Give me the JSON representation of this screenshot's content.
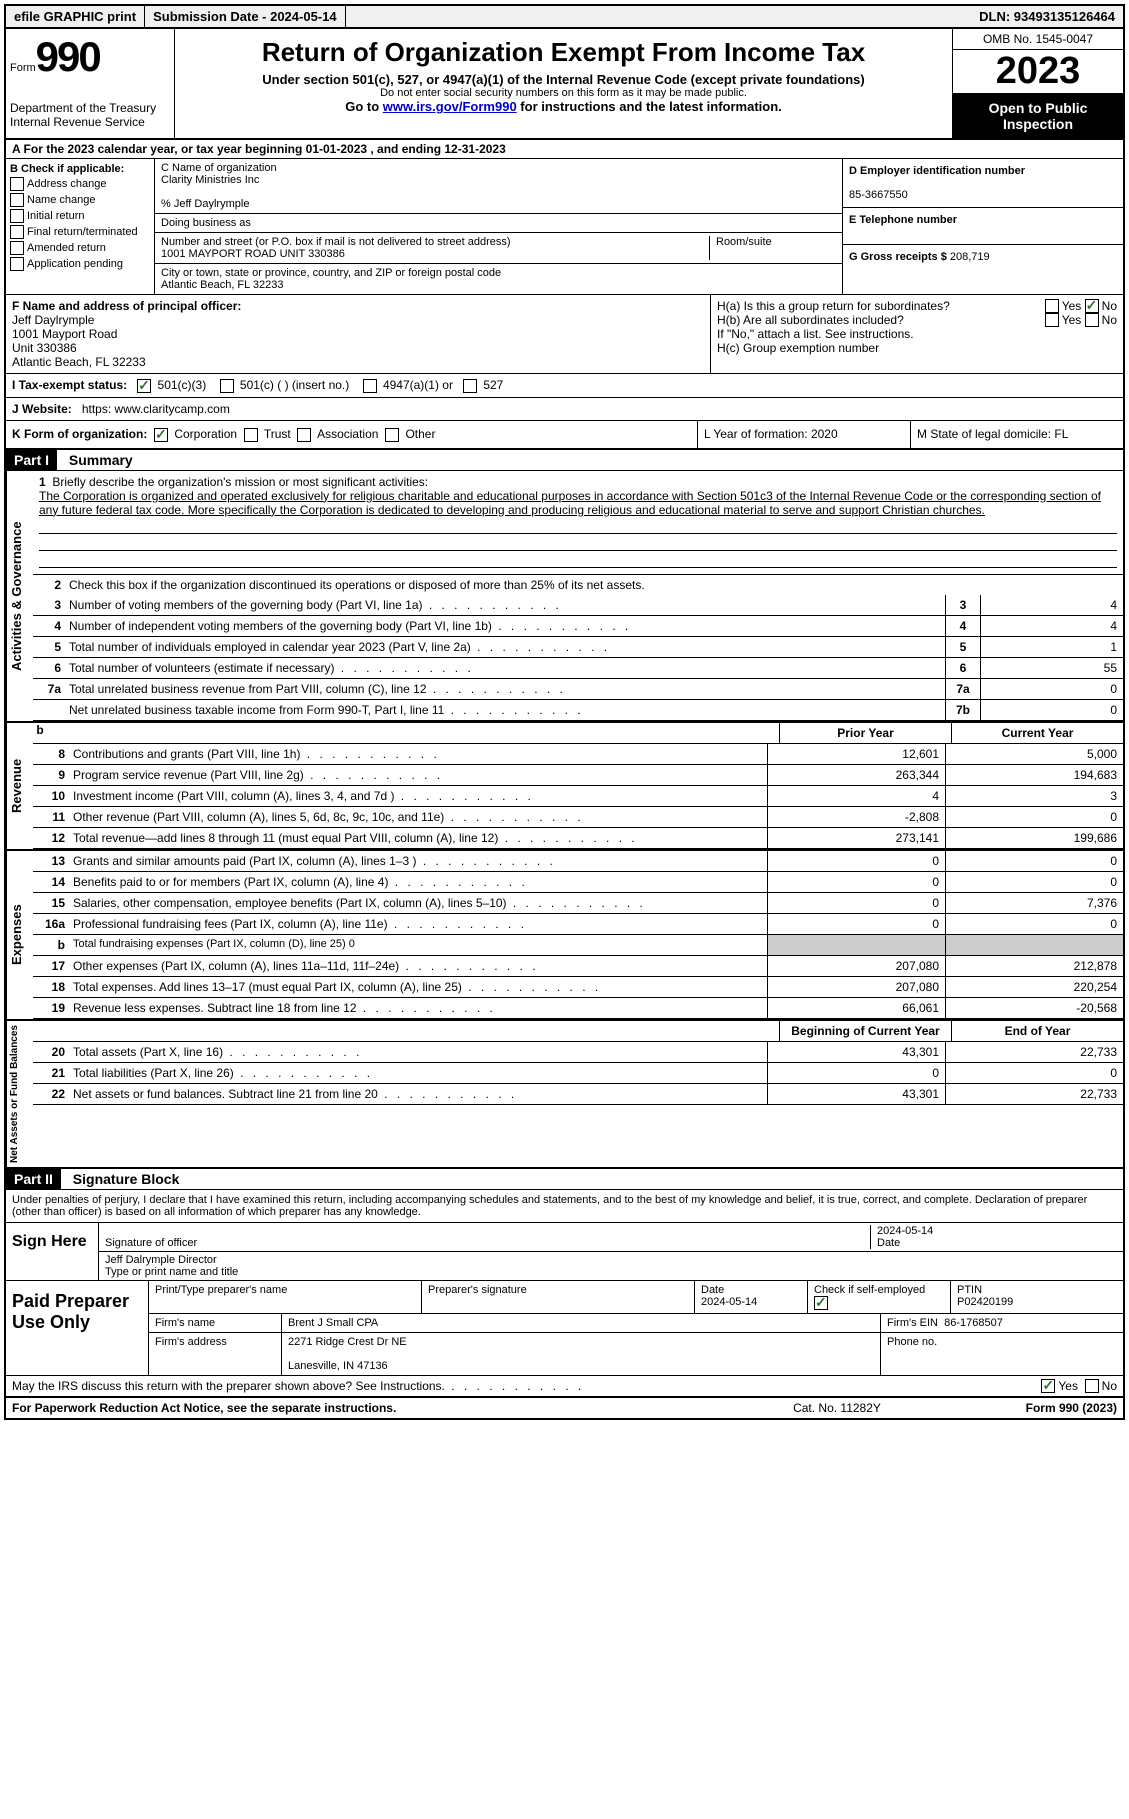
{
  "topbar": {
    "efile": "efile GRAPHIC print",
    "submission": "Submission Date - 2024-05-14",
    "dln": "DLN: 93493135126464"
  },
  "header": {
    "form_label": "Form",
    "form_number": "990",
    "dept": "Department of the Treasury Internal Revenue Service",
    "title": "Return of Organization Exempt From Income Tax",
    "subtitle": "Under section 501(c), 527, or 4947(a)(1) of the Internal Revenue Code (except private foundations)",
    "warn": "Do not enter social security numbers on this form as it may be made public.",
    "goto_pre": "Go to ",
    "goto_link": "www.irs.gov/Form990",
    "goto_post": " for instructions and the latest information.",
    "omb": "OMB No. 1545-0047",
    "year": "2023",
    "inspection": "Open to Public Inspection"
  },
  "line_a": "A For the 2023 calendar year, or tax year beginning 01-01-2023   , and ending 12-31-2023",
  "section_b": {
    "label": "B Check if applicable:",
    "items": [
      "Address change",
      "Name change",
      "Initial return",
      "Final return/terminated",
      "Amended return",
      "Application pending"
    ]
  },
  "section_c": {
    "name_label": "C Name of organization",
    "name": "Clarity Ministries Inc",
    "care_of": "% Jeff Daylrymple",
    "dba_label": "Doing business as",
    "street_label": "Number and street (or P.O. box if mail is not delivered to street address)",
    "street": "1001 MAYPORT ROAD UNIT 330386",
    "room_label": "Room/suite",
    "city_label": "City or town, state or province, country, and ZIP or foreign postal code",
    "city": "Atlantic Beach, FL  32233"
  },
  "section_d": {
    "label": "D Employer identification number",
    "ein": "85-3667550"
  },
  "section_e": {
    "label": "E Telephone number"
  },
  "section_g": {
    "label": "G Gross receipts $",
    "value": "208,719"
  },
  "officer": {
    "label": "F Name and address of principal officer:",
    "lines": [
      "Jeff Daylrymple",
      "1001 Mayport Road",
      "Unit 330386",
      "Atlantic Beach, FL  32233"
    ]
  },
  "section_h": {
    "ha": "H(a)  Is this a group return for subordinates?",
    "hb": "H(b)  Are all subordinates included?",
    "hnote": "If \"No,\" attach a list. See instructions.",
    "hc": "H(c)  Group exemption number",
    "yes": "Yes",
    "no": "No"
  },
  "tax_exempt": {
    "label": "I  Tax-exempt status:",
    "opts": [
      "501(c)(3)",
      "501(c) (  ) (insert no.)",
      "4947(a)(1) or",
      "527"
    ]
  },
  "website": {
    "label": "J  Website:",
    "url": "https: www.claritycamp.com"
  },
  "form_org": {
    "k": "K Form of organization:",
    "opts": [
      "Corporation",
      "Trust",
      "Association",
      "Other"
    ],
    "l": "L Year of formation: 2020",
    "m": "M State of legal domicile: FL"
  },
  "part1": {
    "header": "Part I",
    "title": "Summary",
    "mission_label": "Briefly describe the organization's mission or most significant activities:",
    "mission": "The Corporation is organized and operated exclusively for religious charitable and educational purposes in accordance with Section 501c3 of the Internal Revenue Code or the corresponding section of any future federal tax code. More specifically the Corporation is dedicated to developing and producing religious and educational material to serve and support Christian churches.",
    "line2": "Check this box      if the organization discontinued its operations or disposed of more than 25% of its net assets.",
    "gov_rows": [
      {
        "n": "3",
        "d": "Number of voting members of the governing body (Part VI, line 1a)",
        "bn": "3",
        "v": "4"
      },
      {
        "n": "4",
        "d": "Number of independent voting members of the governing body (Part VI, line 1b)",
        "bn": "4",
        "v": "4"
      },
      {
        "n": "5",
        "d": "Total number of individuals employed in calendar year 2023 (Part V, line 2a)",
        "bn": "5",
        "v": "1"
      },
      {
        "n": "6",
        "d": "Total number of volunteers (estimate if necessary)",
        "bn": "6",
        "v": "55"
      },
      {
        "n": "7a",
        "d": "Total unrelated business revenue from Part VIII, column (C), line 12",
        "bn": "7a",
        "v": "0"
      },
      {
        "n": "",
        "d": "Net unrelated business taxable income from Form 990-T, Part I, line 11",
        "bn": "7b",
        "v": "0"
      }
    ],
    "col_prior": "Prior Year",
    "col_current": "Current Year",
    "revenue_rows": [
      {
        "n": "8",
        "d": "Contributions and grants (Part VIII, line 1h)",
        "p": "12,601",
        "c": "5,000"
      },
      {
        "n": "9",
        "d": "Program service revenue (Part VIII, line 2g)",
        "p": "263,344",
        "c": "194,683"
      },
      {
        "n": "10",
        "d": "Investment income (Part VIII, column (A), lines 3, 4, and 7d )",
        "p": "4",
        "c": "3"
      },
      {
        "n": "11",
        "d": "Other revenue (Part VIII, column (A), lines 5, 6d, 8c, 9c, 10c, and 11e)",
        "p": "-2,808",
        "c": "0"
      },
      {
        "n": "12",
        "d": "Total revenue—add lines 8 through 11 (must equal Part VIII, column (A), line 12)",
        "p": "273,141",
        "c": "199,686"
      }
    ],
    "expense_rows": [
      {
        "n": "13",
        "d": "Grants and similar amounts paid (Part IX, column (A), lines 1–3 )",
        "p": "0",
        "c": "0"
      },
      {
        "n": "14",
        "d": "Benefits paid to or for members (Part IX, column (A), line 4)",
        "p": "0",
        "c": "0"
      },
      {
        "n": "15",
        "d": "Salaries, other compensation, employee benefits (Part IX, column (A), lines 5–10)",
        "p": "0",
        "c": "7,376"
      },
      {
        "n": "16a",
        "d": "Professional fundraising fees (Part IX, column (A), line 11e)",
        "p": "0",
        "c": "0"
      },
      {
        "n": "b",
        "d": "Total fundraising expenses (Part IX, column (D), line 25) 0",
        "shaded": true
      },
      {
        "n": "17",
        "d": "Other expenses (Part IX, column (A), lines 11a–11d, 11f–24e)",
        "p": "207,080",
        "c": "212,878"
      },
      {
        "n": "18",
        "d": "Total expenses. Add lines 13–17 (must equal Part IX, column (A), line 25)",
        "p": "207,080",
        "c": "220,254"
      },
      {
        "n": "19",
        "d": "Revenue less expenses. Subtract line 18 from line 12",
        "p": "66,061",
        "c": "-20,568"
      }
    ],
    "col_begin": "Beginning of Current Year",
    "col_end": "End of Year",
    "net_rows": [
      {
        "n": "20",
        "d": "Total assets (Part X, line 16)",
        "p": "43,301",
        "c": "22,733"
      },
      {
        "n": "21",
        "d": "Total liabilities (Part X, line 26)",
        "p": "0",
        "c": "0"
      },
      {
        "n": "22",
        "d": "Net assets or fund balances. Subtract line 21 from line 20",
        "p": "43,301",
        "c": "22,733"
      }
    ],
    "vlabels": {
      "gov": "Activities & Governance",
      "rev": "Revenue",
      "exp": "Expenses",
      "net": "Net Assets or Fund Balances"
    }
  },
  "part2": {
    "header": "Part II",
    "title": "Signature Block",
    "declare": "Under penalties of perjury, I declare that I have examined this return, including accompanying schedules and statements, and to the best of my knowledge and belief, it is true, correct, and complete. Declaration of preparer (other than officer) is based on all information of which preparer has any knowledge.",
    "sign_here": "Sign Here",
    "sig_officer": "Signature of officer",
    "sig_date_val": "2024-05-14",
    "sig_date": "Date",
    "officer_name": "Jeff Dalrymple  Director",
    "type_name": "Type or print name and title",
    "paid": "Paid Preparer Use Only",
    "prep_name_label": "Print/Type preparer's name",
    "prep_sig_label": "Preparer's signature",
    "prep_date_label": "Date",
    "prep_date": "2024-05-14",
    "check_self": "Check        if self-employed",
    "ptin_label": "PTIN",
    "ptin": "P02420199",
    "firm_name_label": "Firm's name",
    "firm_name": "Brent J Small CPA",
    "firm_ein_label": "Firm's EIN",
    "firm_ein": "86-1768507",
    "firm_addr_label": "Firm's address",
    "firm_addr1": "2271 Ridge Crest Dr NE",
    "firm_addr2": "Lanesville, IN  47136",
    "phone_label": "Phone no."
  },
  "discuss": {
    "text": "May the IRS discuss this return with the preparer shown above? See Instructions.",
    "yes": "Yes",
    "no": "No"
  },
  "footer": {
    "pra": "For Paperwork Reduction Act Notice, see the separate instructions.",
    "cat": "Cat. No. 11282Y",
    "form": "Form 990 (2023)"
  }
}
